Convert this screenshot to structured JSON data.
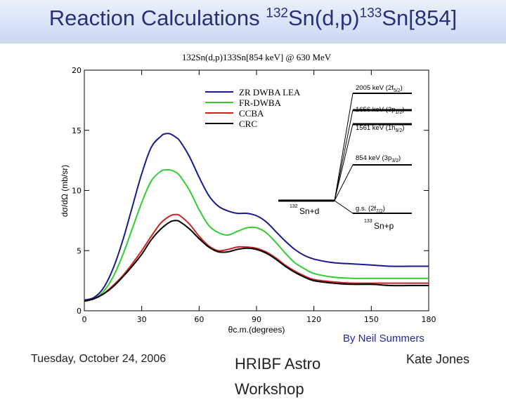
{
  "slide": {
    "title_main": "Reaction Calculations ",
    "title_sup1": "132",
    "title_mid": "Sn(d,p)",
    "title_sup2": "133",
    "title_end": "Sn[854]",
    "credit": "By Neil Summers",
    "footer_date": "Tuesday, October 24, 2006",
    "footer_center": "HRIBF Astro Workshop",
    "footer_name": "Kate Jones"
  },
  "chart_data": {
    "type": "line",
    "title": "132Sn(d,p)133Sn[854 keV] @ 630 MeV",
    "xlabel": "θc.m.(degrees)",
    "ylabel": "dσ/dΩ (mb/sr)",
    "xlim": [
      0,
      180
    ],
    "ylim": [
      0,
      20
    ],
    "xticks": [
      0,
      30,
      60,
      90,
      120,
      150,
      180
    ],
    "yticks": [
      0,
      5,
      10,
      15,
      20
    ],
    "legend_position": "top-center",
    "series": [
      {
        "name": "ZR DWBA LEA",
        "color": "#1a1a8c",
        "x": [
          0,
          5,
          10,
          15,
          20,
          25,
          30,
          35,
          40,
          42,
          45,
          48,
          50,
          55,
          60,
          65,
          70,
          75,
          80,
          85,
          90,
          95,
          100,
          105,
          110,
          115,
          120,
          130,
          140,
          150,
          160,
          170,
          180
        ],
        "y": [
          0.9,
          1.1,
          1.9,
          3.5,
          5.8,
          8.6,
          11.4,
          13.6,
          14.5,
          14.7,
          14.7,
          14.4,
          14.1,
          12.8,
          11.1,
          9.6,
          8.7,
          8.3,
          8.1,
          8.1,
          7.9,
          7.4,
          6.6,
          5.8,
          5.1,
          4.6,
          4.3,
          4.0,
          3.9,
          3.8,
          3.7,
          3.7,
          3.7
        ]
      },
      {
        "name": "FR-DWBA",
        "color": "#33cc33",
        "x": [
          0,
          5,
          10,
          15,
          20,
          25,
          30,
          35,
          40,
          42,
          45,
          48,
          50,
          55,
          60,
          65,
          70,
          75,
          80,
          85,
          90,
          95,
          100,
          105,
          110,
          115,
          120,
          130,
          140,
          150,
          160,
          170,
          180
        ],
        "y": [
          0.8,
          1.0,
          1.6,
          2.8,
          4.6,
          6.8,
          9.0,
          10.8,
          11.6,
          11.7,
          11.7,
          11.5,
          11.2,
          10.0,
          8.4,
          7.1,
          6.5,
          6.3,
          6.6,
          6.9,
          6.9,
          6.5,
          5.7,
          4.8,
          4.0,
          3.5,
          3.1,
          2.8,
          2.7,
          2.7,
          2.7,
          2.7,
          2.7
        ]
      },
      {
        "name": "CCBA",
        "color": "#cc2222",
        "x": [
          0,
          5,
          10,
          15,
          20,
          25,
          30,
          35,
          40,
          45,
          48,
          50,
          55,
          60,
          65,
          70,
          75,
          80,
          85,
          90,
          95,
          100,
          105,
          110,
          115,
          120,
          130,
          140,
          150,
          160,
          170,
          180
        ],
        "y": [
          0.8,
          1.0,
          1.4,
          2.1,
          2.9,
          3.9,
          5.0,
          6.2,
          7.3,
          7.9,
          8.0,
          7.9,
          7.2,
          6.2,
          5.4,
          5.0,
          5.1,
          5.3,
          5.3,
          5.2,
          4.9,
          4.4,
          3.8,
          3.3,
          2.9,
          2.6,
          2.4,
          2.3,
          2.3,
          2.3,
          2.3,
          2.3
        ]
      },
      {
        "name": "CRC",
        "color": "#000000",
        "x": [
          0,
          5,
          10,
          15,
          20,
          25,
          30,
          35,
          40,
          45,
          48,
          50,
          55,
          60,
          65,
          70,
          75,
          80,
          85,
          90,
          95,
          100,
          105,
          110,
          115,
          120,
          130,
          140,
          150,
          160,
          170,
          180
        ],
        "y": [
          0.8,
          1.0,
          1.4,
          2.0,
          2.8,
          3.7,
          4.7,
          5.9,
          6.8,
          7.4,
          7.5,
          7.4,
          6.8,
          6.0,
          5.3,
          4.9,
          4.9,
          5.1,
          5.2,
          5.1,
          4.8,
          4.3,
          3.7,
          3.2,
          2.8,
          2.5,
          2.3,
          2.2,
          2.2,
          2.1,
          2.1,
          2.1
        ]
      }
    ],
    "inset": {
      "entrance_label_sup": "132",
      "entrance_label": "Sn+d",
      "exit_label_sup": "133",
      "exit_label": "Sn+p",
      "levels": [
        {
          "label": "2005 keV (2f",
          "sub": "5/2",
          "close": ")"
        },
        {
          "label": "1656 keV (3p",
          "sub": "1/2",
          "close": ")"
        },
        {
          "label": "1561 keV (1h",
          "sub": "9/2",
          "close": ")"
        },
        {
          "label": "854 keV (3p",
          "sub": "3/2",
          "close": ")"
        },
        {
          "label": "g.s. (2f",
          "sub": "7/2",
          "close": ")"
        }
      ]
    }
  }
}
